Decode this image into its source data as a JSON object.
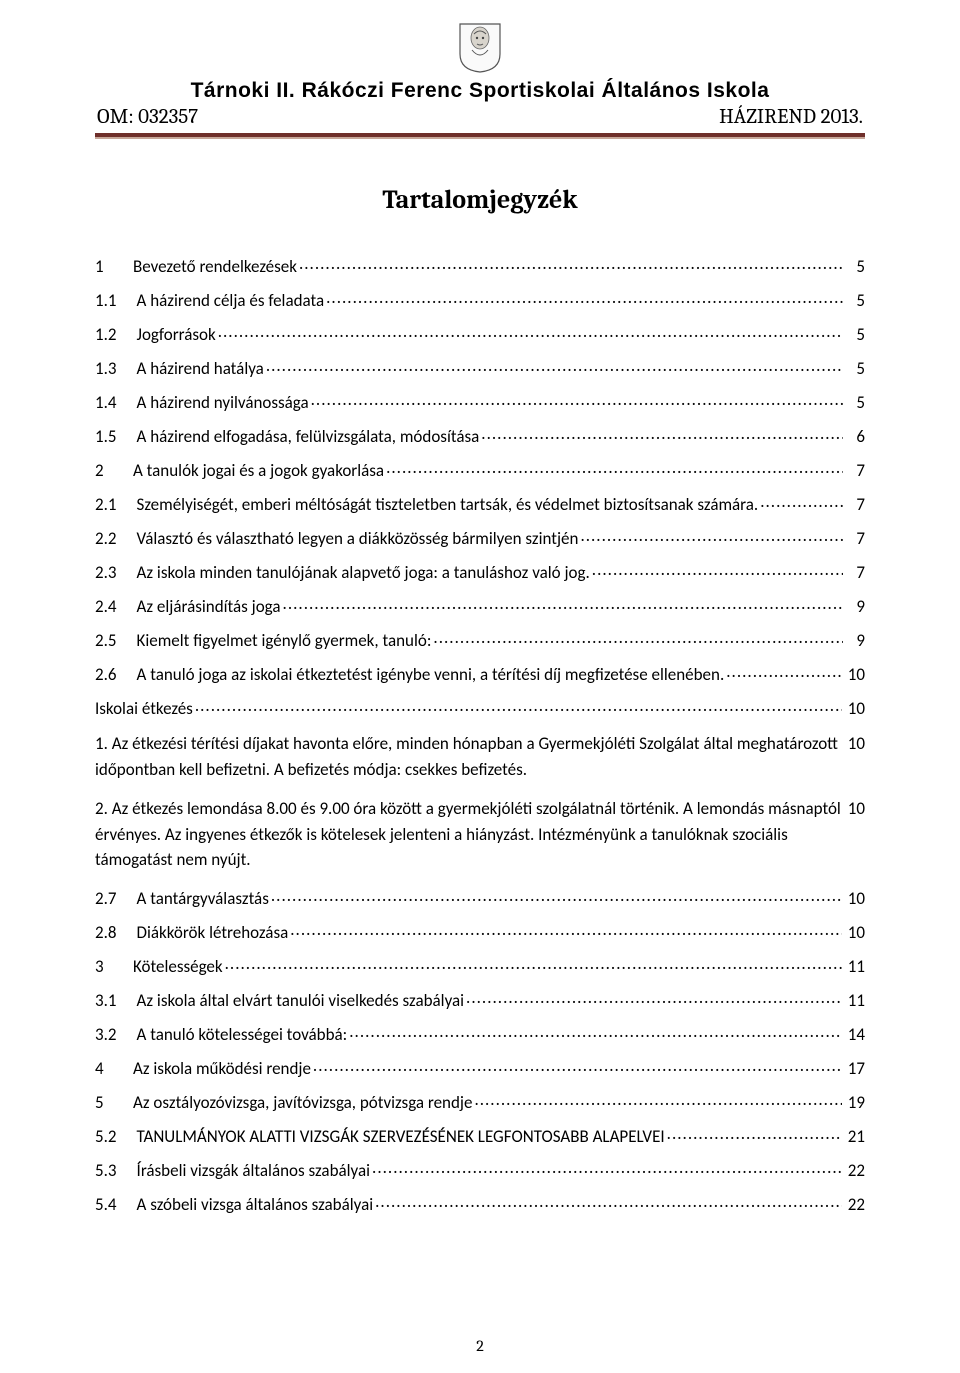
{
  "header": {
    "school_name": "Tárnoki II. Rákóczi Ferenc Sportiskolai Általános Iskola",
    "om_label": "OM: 032357",
    "doc_label": "HÁZIREND 2013.",
    "rule_color": "#6f2f2a"
  },
  "title": "Tartalomjegyzék",
  "toc": [
    {
      "num": "1",
      "text": "Bevezető rendelkezések",
      "page": "5",
      "level": 0
    },
    {
      "num": "1.1",
      "text": "A házirend célja és feladata",
      "page": "5",
      "level": 1
    },
    {
      "num": "1.2",
      "text": "Jogforrások",
      "page": "5",
      "level": 1
    },
    {
      "num": "1.3",
      "text": "A házirend hatálya",
      "page": "5",
      "level": 1
    },
    {
      "num": "1.4",
      "text": "A házirend nyilvánossága",
      "page": "5",
      "level": 1
    },
    {
      "num": "1.5",
      "text": "A házirend elfogadása, felülvizsgálata, módosítása",
      "page": "6",
      "level": 1
    },
    {
      "num": "2",
      "text": "A tanulók jogai és a jogok gyakorlása",
      "page": "7",
      "level": 0
    },
    {
      "num": "2.1",
      "text": "Személyiségét, emberi méltóságát tiszteletben tartsák, és védelmet biztosítsanak számára.",
      "page": "7",
      "level": 1
    },
    {
      "num": "2.2",
      "text": "Választó és választható legyen a diákközösség bármilyen szintjén",
      "page": "7",
      "level": 1
    },
    {
      "num": "2.3",
      "text": "Az iskola minden tanulójának alapvető joga: a tanuláshoz való jog. ",
      "page": "7",
      "level": 1
    },
    {
      "num": "2.4",
      "text": "Az eljárásindítás joga",
      "page": "9",
      "level": 1
    },
    {
      "num": "2.5",
      "text": "Kiemelt figyelmet igénylő gyermek, tanuló:",
      "page": "9",
      "level": 1
    },
    {
      "num": "2.6",
      "text": "A tanuló joga az iskolai étkeztetést igénybe venni, a térítési díj megfizetése ellenében. ",
      "page": "10",
      "level": 1
    },
    {
      "type": "plain",
      "text": "Iskolai étkezés",
      "page": "10"
    },
    {
      "type": "para",
      "text": "1. Az étkezési térítési díjakat havonta előre, minden  hónapban  a Gyermekjóléti Szolgálat által meghatározott időpontban kell befizetni. A befizetés módja: csekkes befizetés.",
      "page": "10"
    },
    {
      "type": "para",
      "text": "2. Az étkezés lemondása 8.00 és 9.00 óra között a  gyermekjóléti szolgálatnál történik. A lemondás másnaptól érvényes. Az ingyenes étkezők is kötelesek jelenteni a hiányzást. Intézményünk a tanulóknak szociális támogatást nem nyújt.",
      "page": "10"
    },
    {
      "num": "2.7",
      "text": "A tantárgyválasztás",
      "page": "10",
      "level": 1
    },
    {
      "num": "2.8",
      "text": "Diákkörök létrehozása",
      "page": "10",
      "level": 1
    },
    {
      "num": "3",
      "text": "Kötelességek",
      "page": "11",
      "level": 0
    },
    {
      "num": "3.1",
      "text": "Az iskola által elvárt tanulói viselkedés szabályai",
      "page": "11",
      "level": 1
    },
    {
      "num": "3.2",
      "text": "A tanuló kötelességei továbbá:",
      "page": "14",
      "level": 1
    },
    {
      "num": "4",
      "text": "Az iskola működési rendje",
      "page": "17",
      "level": 0
    },
    {
      "num": "5",
      "text": "Az osztályozóvizsga, javítóvizsga, pótvizsga rendje",
      "page": "19",
      "level": 0
    },
    {
      "num": "5.2",
      "text": "TANULMÁNYOK ALATTI VIZSGÁK SZERVEZÉSÉNEK LEGFONTOSABB ALAPELVEI",
      "page": "21",
      "level": 1
    },
    {
      "num": "5.3",
      "text": "Írásbeli vizsgák általános szabályai",
      "page": "22",
      "level": 1
    },
    {
      "num": "5.4",
      "text": "A szóbeli vizsga általános szabályai",
      "page": "22",
      "level": 1
    }
  ],
  "footer_page": "2"
}
